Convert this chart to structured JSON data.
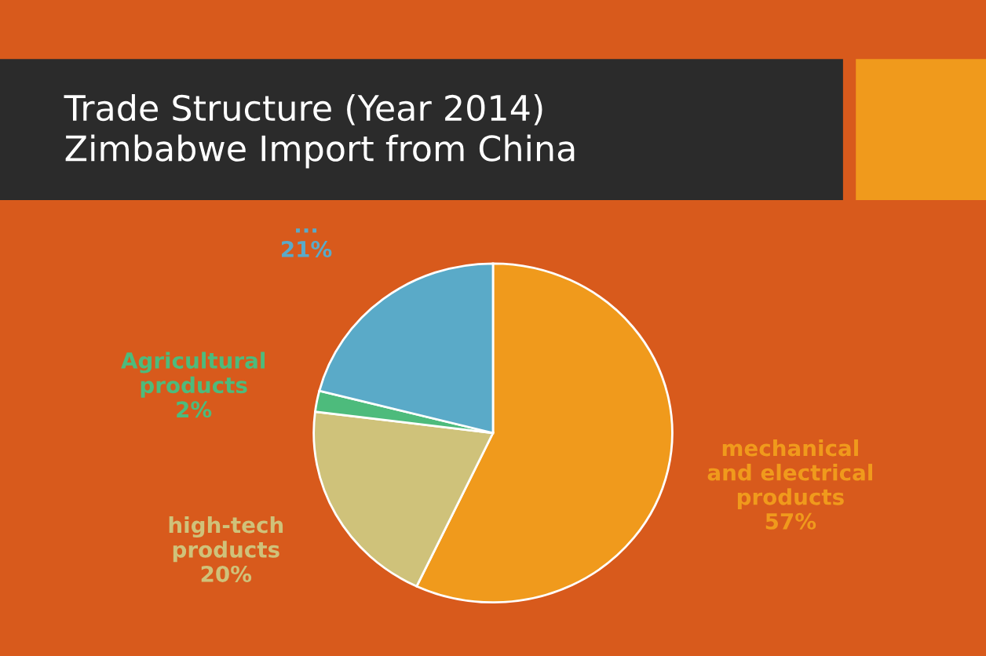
{
  "chart_data": {
    "type": "pie",
    "title": "Trade Structure (Year 2014)\nZimbabwe Import from China",
    "categories": [
      "mechanical\nand electrical\nproducts",
      "high-tech\nproducts",
      "Agricultural\nproducts",
      "..."
    ],
    "values": [
      57,
      20,
      2,
      21
    ],
    "value_labels": [
      "57%",
      "20%",
      "2%",
      "21%"
    ],
    "colors": [
      "#f09a1c",
      "#cfc27a",
      "#4dbb7c",
      "#5aaac8"
    ]
  }
}
